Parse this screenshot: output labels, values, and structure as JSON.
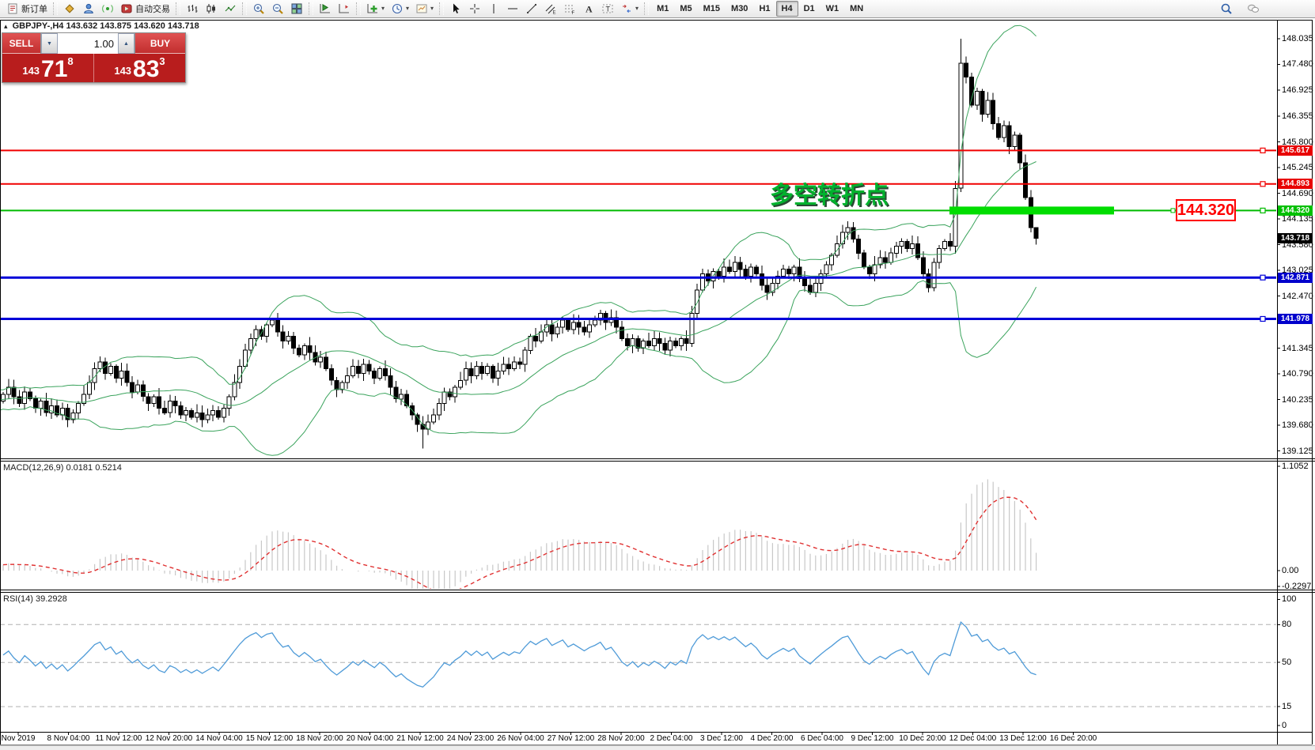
{
  "toolbar": {
    "groups": [
      {
        "name": "orders",
        "items": [
          {
            "name": "new-order",
            "icon": "neworder",
            "label": "新订单"
          }
        ]
      },
      {
        "name": "services",
        "items": [
          {
            "name": "gold",
            "icon": "gold"
          },
          {
            "name": "community",
            "icon": "person"
          },
          {
            "name": "signals",
            "icon": "signal"
          },
          {
            "name": "auto-trading",
            "icon": "autotrading",
            "label": "自动交易"
          }
        ]
      },
      {
        "name": "chart-types",
        "items": [
          {
            "name": "bar-chart",
            "icon": "bars"
          },
          {
            "name": "candlestick-chart",
            "icon": "candles"
          },
          {
            "name": "line-chart",
            "icon": "linechart"
          }
        ]
      },
      {
        "name": "zoom",
        "items": [
          {
            "name": "zoom-in",
            "icon": "zoomin"
          },
          {
            "name": "zoom-out",
            "icon": "zoomout"
          },
          {
            "name": "tile-windows",
            "icon": "tile"
          }
        ]
      },
      {
        "name": "scroll",
        "items": [
          {
            "name": "auto-scroll",
            "icon": "autoscroll"
          },
          {
            "name": "chart-shift",
            "icon": "shift"
          }
        ]
      },
      {
        "name": "tools",
        "items": [
          {
            "name": "indicators",
            "icon": "indicators",
            "dropdown": true
          },
          {
            "name": "periods-menu",
            "icon": "clock",
            "dropdown": true
          },
          {
            "name": "templates",
            "icon": "template",
            "dropdown": true
          }
        ]
      },
      {
        "name": "drawing",
        "items": [
          {
            "name": "cursor",
            "icon": "cursor"
          },
          {
            "name": "crosshair",
            "icon": "crosshair"
          },
          {
            "name": "vertical-line",
            "icon": "vline"
          },
          {
            "name": "horizontal-line",
            "icon": "hline"
          },
          {
            "name": "trendline",
            "icon": "tline"
          },
          {
            "name": "channel",
            "icon": "channel"
          },
          {
            "name": "fibonacci",
            "icon": "fibo"
          },
          {
            "name": "text",
            "icon": "textA"
          },
          {
            "name": "label",
            "icon": "labelT"
          },
          {
            "name": "arrows",
            "icon": "arrows",
            "dropdown": true
          }
        ]
      },
      {
        "name": "timeframes",
        "items": [
          {
            "name": "tf-m1",
            "label": "M1"
          },
          {
            "name": "tf-m5",
            "label": "M5"
          },
          {
            "name": "tf-m15",
            "label": "M15"
          },
          {
            "name": "tf-m30",
            "label": "M30"
          },
          {
            "name": "tf-h1",
            "label": "H1"
          },
          {
            "name": "tf-h4",
            "label": "H4",
            "active": true
          },
          {
            "name": "tf-d1",
            "label": "D1"
          },
          {
            "name": "tf-w1",
            "label": "W1"
          },
          {
            "name": "tf-mn",
            "label": "MN"
          }
        ]
      }
    ],
    "right_items": [
      {
        "name": "search",
        "icon": "search"
      },
      {
        "name": "chat",
        "icon": "chat"
      }
    ]
  },
  "symbol_line": {
    "collapse_icon": "▴",
    "symbol": "GBPJPY-,H4",
    "ohlc": "143.632 143.875 143.620 143.718"
  },
  "trade_panel": {
    "sell_label": "SELL",
    "buy_label": "BUY",
    "volume": "1.00",
    "sell_price_main": "143",
    "sell_price_big": "71",
    "sell_price_sup": "8",
    "buy_price_main": "143",
    "buy_price_big": "83",
    "buy_price_sup": "3"
  },
  "annotation": {
    "text": "多空转折点",
    "color": "#00b22d"
  },
  "price_callout": {
    "text": "144.320",
    "color": "#ff0000"
  },
  "macd_label": {
    "name": "MACD(12,26,9)",
    "v1": "0.0181",
    "v2": "0.5214"
  },
  "rsi_label": {
    "name": "RSI(14)",
    "value": "39.2928"
  },
  "chart_data": {
    "type": "candlestick",
    "symbol": "GBPJPY-",
    "timeframe": "H4",
    "quote": {
      "open": 143.632,
      "high": 143.875,
      "low": 143.62,
      "close": 143.718,
      "bid": 143.718,
      "ask": 143.833
    },
    "ylim": [
      138.95,
      148.45
    ],
    "grid": false,
    "price_ticks": [
      "148.035",
      "147.480",
      "146.925",
      "146.355",
      "145.800",
      "145.245",
      "144.690",
      "144.135",
      "143.580",
      "143.025",
      "142.470",
      "141.345",
      "140.790",
      "140.235",
      "139.680",
      "139.125"
    ],
    "time_ticks": [
      "Nov 2019",
      "8 Nov 04:00",
      "11 Nov 12:00",
      "12 Nov 20:00",
      "14 Nov 04:00",
      "15 Nov 12:00",
      "18 Nov 20:00",
      "20 Nov 04:00",
      "21 Nov 12:00",
      "24 Nov 23:00",
      "26 Nov 04:00",
      "27 Nov 12:00",
      "28 Nov 20:00",
      "2 Dec 04:00",
      "3 Dec 12:00",
      "4 Dec 20:00",
      "6 Dec 04:00",
      "9 Dec 12:00",
      "10 Dec 20:00",
      "12 Dec 04:00",
      "13 Dec 12:00",
      "16 Dec 20:00"
    ],
    "bollinger": {
      "period": 20,
      "deviations": 2,
      "color": "#3aa35c"
    },
    "hlines": [
      {
        "price": 145.617,
        "label": "145.617",
        "color": "#f00000",
        "lw": 2,
        "tag": "#e80000"
      },
      {
        "price": 144.893,
        "label": "144.893",
        "color": "#f00000",
        "lw": 2,
        "tag": "#e80000"
      },
      {
        "price": 144.32,
        "label": "144.320",
        "color": "#00bb00",
        "lw": 2,
        "tag": "#00c000",
        "highlight": [
          1200,
          1408,
          10
        ],
        "callout_connector": [
          1408,
          1484
        ]
      },
      {
        "price": 142.871,
        "label": "142.871",
        "color": "#0000d8",
        "lw": 3,
        "tag": "#0000cc"
      },
      {
        "price": 141.978,
        "label": "141.978",
        "color": "#0000d8",
        "lw": 3,
        "tag": "#0000cc"
      }
    ],
    "current_price_tag": {
      "label": "143.718",
      "value": 143.718,
      "bg": "#000000"
    },
    "closes_pre": [
      140.0,
      140.2,
      140.1,
      140.3,
      140.15,
      140.0,
      140.2,
      140.35,
      140.1,
      140.25,
      140.4,
      140.2,
      140.3,
      140.15,
      140.25,
      140.35,
      140.2,
      140.4,
      140.3,
      140.2
    ],
    "closes": [
      140.35,
      140.5,
      140.3,
      140.15,
      140.4,
      140.25,
      140.05,
      140.2,
      139.95,
      140.1,
      139.9,
      140.05,
      139.8,
      139.95,
      140.15,
      140.35,
      140.6,
      140.9,
      141.05,
      140.8,
      140.95,
      140.7,
      140.85,
      140.6,
      140.4,
      140.55,
      140.3,
      140.15,
      140.3,
      140.05,
      139.95,
      140.2,
      140.1,
      139.9,
      140.0,
      139.85,
      139.95,
      139.8,
      139.9,
      140.0,
      139.85,
      140.05,
      140.3,
      140.6,
      140.95,
      141.3,
      141.55,
      141.75,
      141.6,
      141.85,
      141.95,
      141.7,
      141.5,
      141.6,
      141.35,
      141.2,
      141.4,
      141.25,
      141.05,
      141.15,
      140.9,
      140.65,
      140.45,
      140.6,
      140.75,
      140.95,
      140.8,
      141.0,
      140.85,
      140.7,
      140.9,
      140.75,
      140.5,
      140.25,
      140.35,
      140.1,
      139.9,
      139.7,
      139.6,
      139.75,
      139.9,
      140.15,
      140.4,
      140.3,
      140.5,
      140.65,
      140.9,
      140.75,
      140.95,
      140.8,
      140.95,
      140.7,
      140.85,
      141.0,
      140.9,
      141.05,
      141.0,
      141.3,
      141.6,
      141.5,
      141.7,
      141.85,
      141.65,
      141.8,
      141.95,
      141.75,
      141.9,
      141.8,
      141.7,
      141.85,
      141.95,
      142.1,
      141.9,
      142.0,
      141.8,
      141.55,
      141.4,
      141.55,
      141.35,
      141.5,
      141.4,
      141.55,
      141.45,
      141.3,
      141.5,
      141.4,
      141.55,
      141.45,
      142.1,
      142.6,
      142.95,
      142.8,
      143.0,
      142.9,
      143.1,
      143.0,
      143.2,
      143.05,
      142.9,
      143.1,
      142.95,
      142.7,
      142.55,
      142.75,
      142.9,
      143.05,
      142.95,
      143.1,
      142.85,
      142.7,
      142.55,
      142.75,
      142.95,
      143.15,
      143.35,
      143.6,
      143.85,
      143.95,
      143.7,
      143.4,
      143.1,
      142.95,
      143.15,
      143.3,
      143.2,
      143.4,
      143.55,
      143.65,
      143.5,
      143.6,
      143.3,
      142.95,
      142.65,
      143.2,
      143.5,
      143.65,
      143.55,
      144.8,
      147.5,
      147.2,
      146.6,
      146.9,
      146.4,
      146.7,
      146.2,
      145.9,
      146.15,
      145.7,
      145.95,
      145.35,
      144.6,
      143.95,
      143.72
    ],
    "wick_overrides": {
      "50": {
        "h": 142.0
      },
      "78": {
        "l": 139.18
      },
      "172": {
        "l": 142.55
      },
      "178": {
        "h": 148.03
      },
      "179": {
        "h": 147.65
      },
      "192": {
        "h": 143.88,
        "l": 143.58
      }
    },
    "macd": {
      "params": [
        12,
        26,
        9
      ],
      "last_main": 0.0181,
      "last_signal": 0.5214,
      "scale": [
        {
          "t": "1.1052",
          "v": 1.1052
        },
        {
          "t": "0.00",
          "v": 0
        },
        {
          "t": "-0.2297",
          "v": -0.2297
        }
      ],
      "hist_color": "#c8c8c8",
      "signal_color": "#e03232"
    },
    "rsi": {
      "period": 14,
      "last": 39.2928,
      "color": "#4f9bd8",
      "levels": [
        80,
        50,
        15
      ],
      "scale": [
        {
          "t": "100",
          "v": 100
        },
        {
          "t": "80",
          "v": 80
        },
        {
          "t": "50",
          "v": 50
        },
        {
          "t": "15",
          "v": 15
        },
        {
          "t": "0",
          "v": 0
        }
      ]
    }
  }
}
